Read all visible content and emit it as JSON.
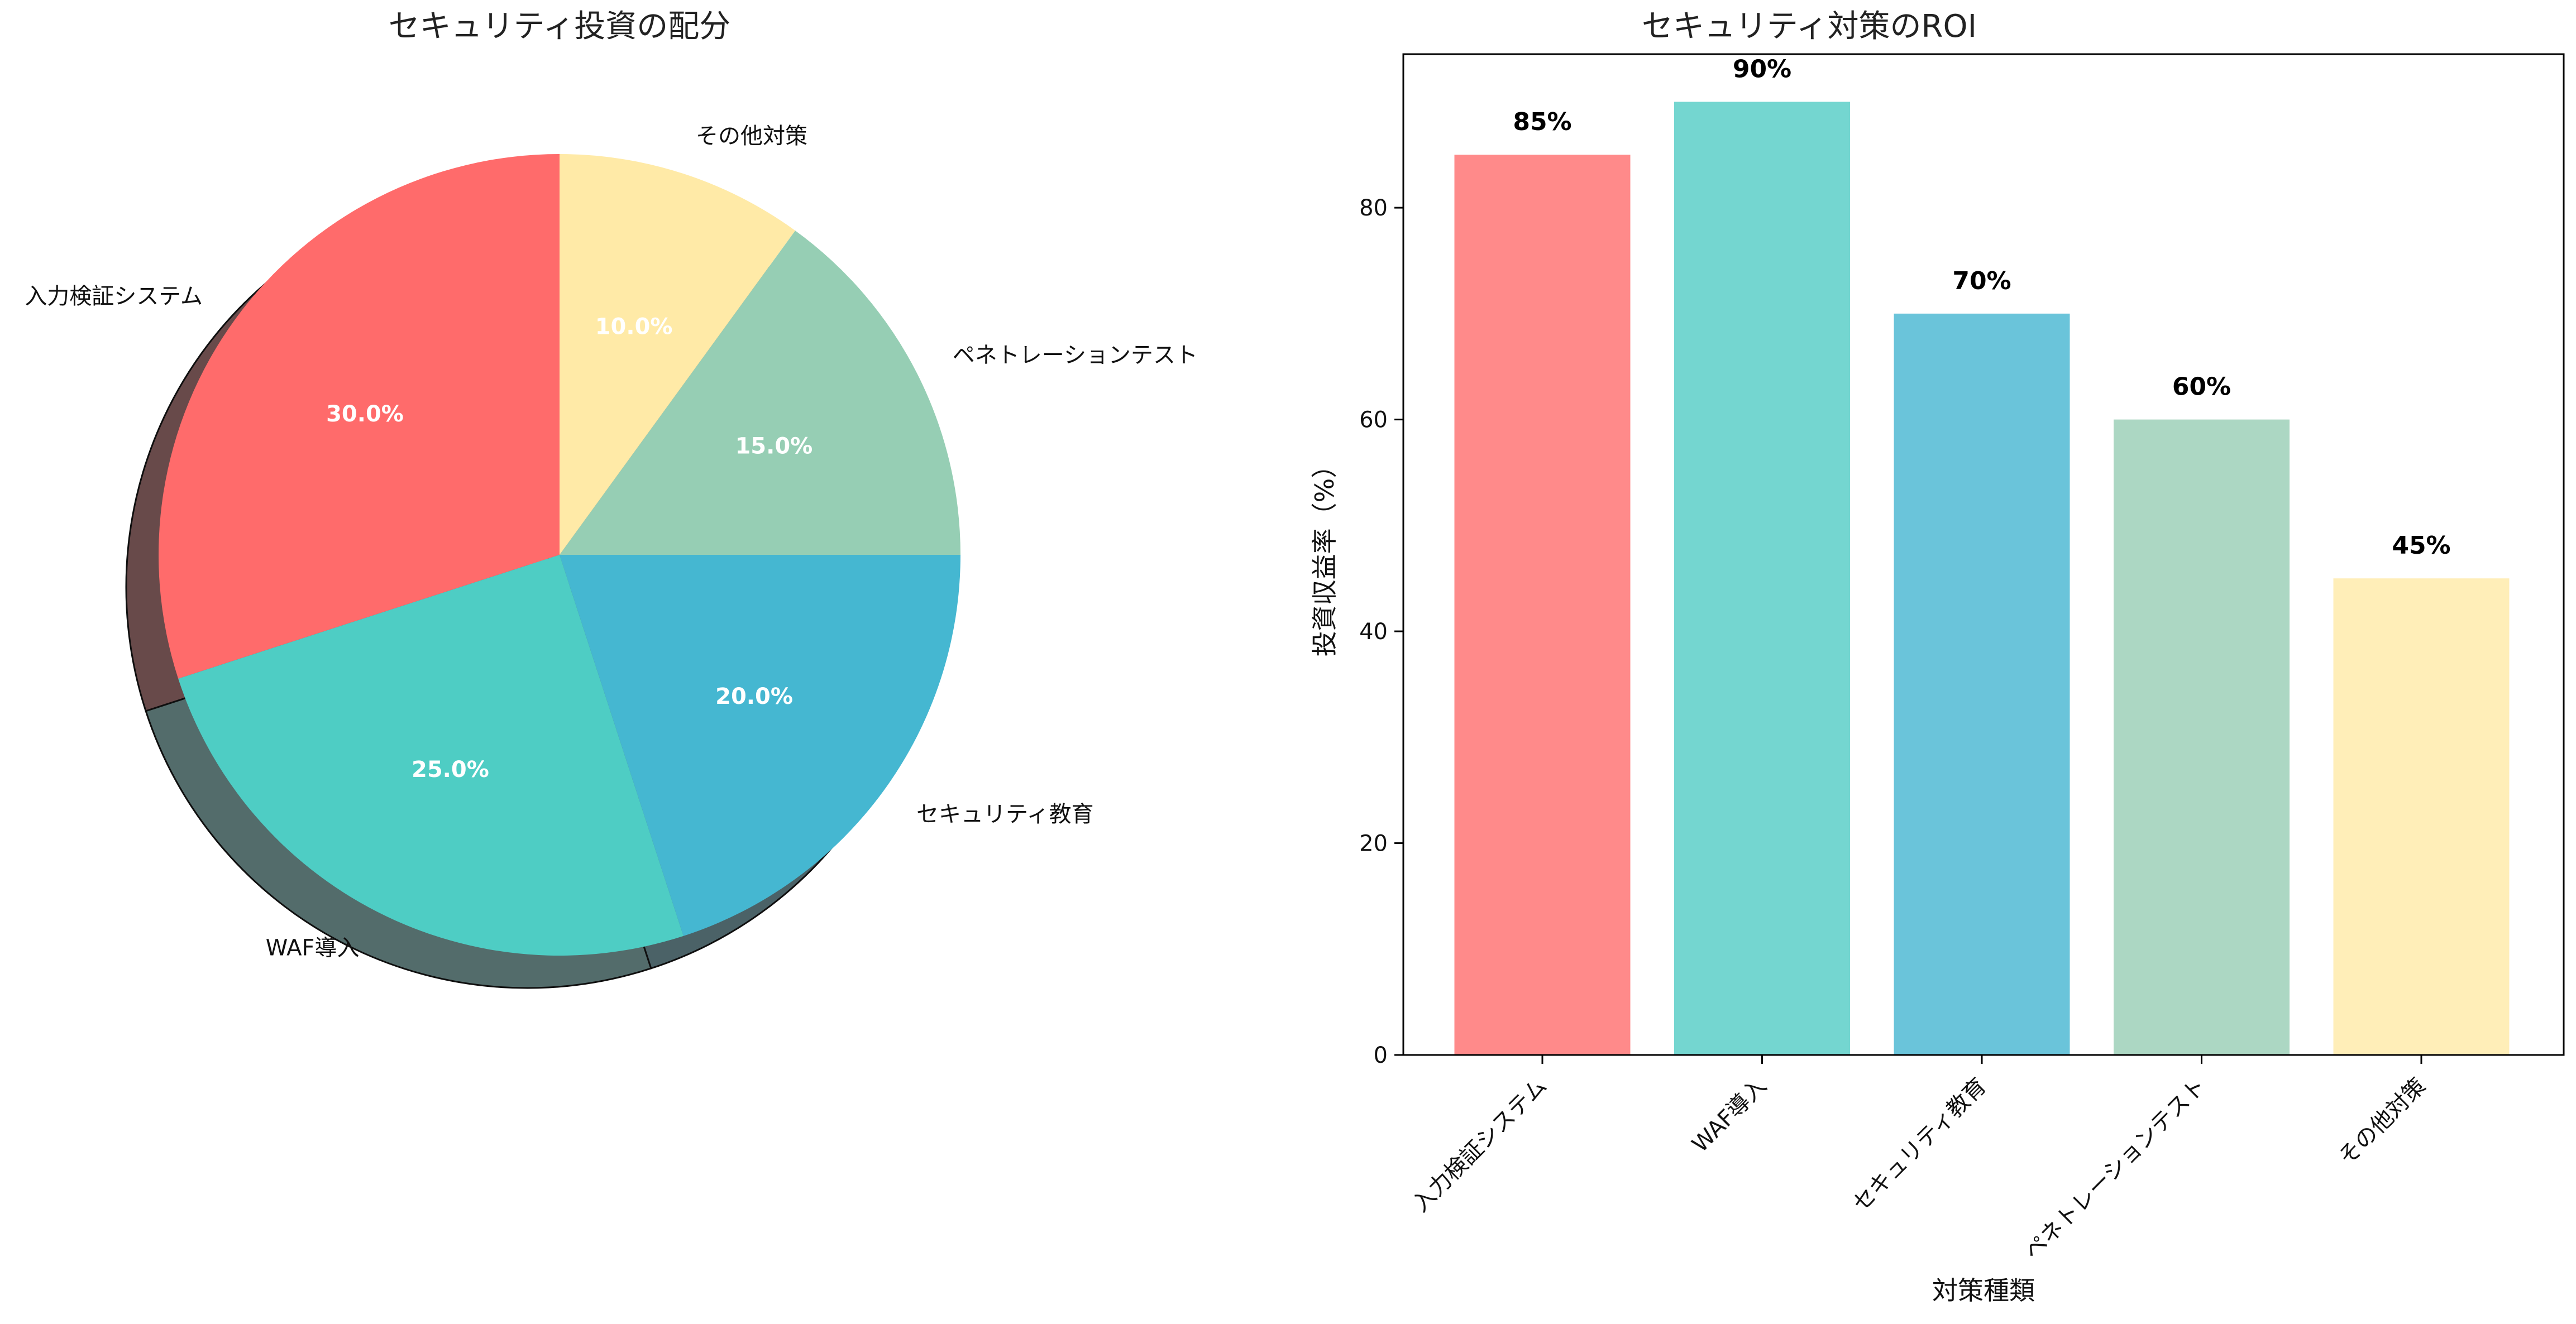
{
  "chart_data": [
    {
      "type": "pie",
      "title": "セキュリティ投資の配分",
      "categories": [
        "入力検証システム",
        "WAF導入",
        "セキュリティ教育",
        "ペネトレーションテスト",
        "その他対策"
      ],
      "values": [
        30,
        25,
        20,
        15,
        10
      ],
      "value_labels": [
        "30.0%",
        "25.0%",
        "20.0%",
        "15.0%",
        "10.0%"
      ],
      "colors": [
        "#ff6b6b",
        "#4ecdc4",
        "#45b7d1",
        "#96ceb4",
        "#ffeaa7"
      ],
      "start_angle_deg": 90,
      "direction": "counterclockwise",
      "shadow": true,
      "legend": false
    },
    {
      "type": "bar",
      "title": "セキュリティ対策のROI",
      "categories": [
        "入力検証システム",
        "WAF導入",
        "セキュリティ教育",
        "ペネトレーションテスト",
        "その他対策"
      ],
      "values": [
        85,
        90,
        70,
        60,
        45
      ],
      "value_labels": [
        "85%",
        "90%",
        "70%",
        "60%",
        "45%"
      ],
      "colors": [
        "#ff8a8a",
        "#74d6d0",
        "#6ac4da",
        "#acd7c3",
        "#ffeeb8"
      ],
      "xlabel": "対策種類",
      "ylabel": "投資収益率（%）",
      "ylim": [
        0,
        94.5
      ],
      "yticks": [
        0,
        20,
        40,
        60,
        80
      ],
      "grid": false,
      "legend": false
    }
  ]
}
